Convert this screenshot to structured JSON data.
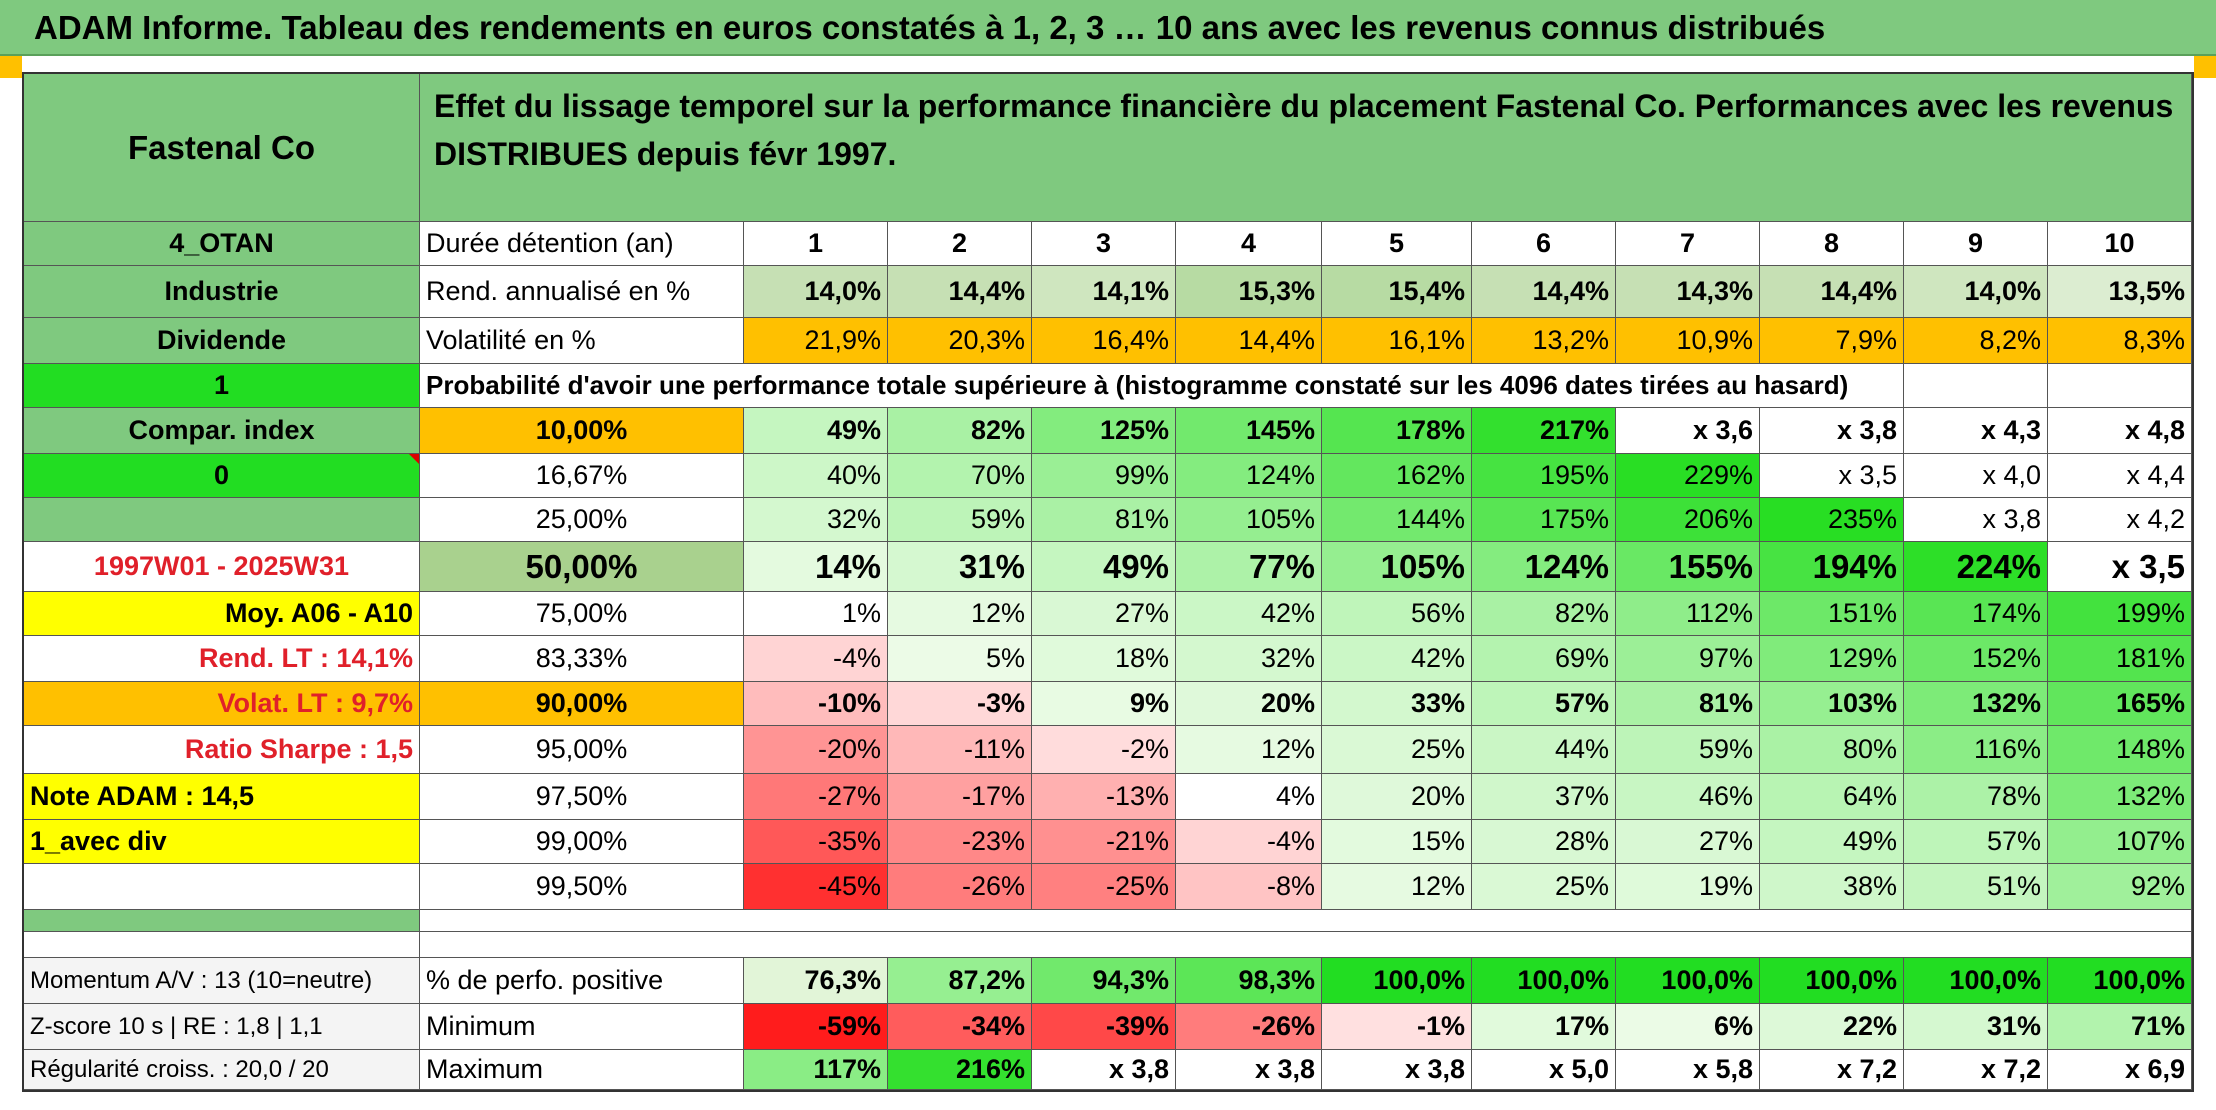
{
  "title": "ADAM Informe. Tableau des rendements en euros constatés à 1, 2, 3 … 10 ans avec les revenus connus distribués",
  "header": {
    "name": "Fastenal Co",
    "description": "Effet du lissage temporel sur la performance financière du placement Fastenal Co. Performances avec les revenus DISTRIBUES depuis févr 1997."
  },
  "left": {
    "code": "4_OTAN",
    "sector": "Industrie",
    "dividend": "Dividende",
    "flag1": "1",
    "compar_index": "Compar. index",
    "flag0": "0",
    "period": "1997W01 - 2025W31",
    "moy": "Moy. A06 - A10",
    "rend_lt": "Rend. LT :    14,1%",
    "volat_lt": "Volat. LT :   9,7%",
    "sharpe": "Ratio Sharpe :    1,5",
    "note": "Note ADAM : 14,5",
    "avec_div": "1_avec div",
    "momentum": "Momentum A/V : 13 (10=neutre)",
    "zscore": "Z-score 10 s | RE : 1,8 | 1,1",
    "regularite": "Régularité croiss. : 20,0 / 20"
  },
  "rows": {
    "duree": {
      "label": "Durée détention (an)",
      "values": [
        "1",
        "2",
        "3",
        "4",
        "5",
        "6",
        "7",
        "8",
        "9",
        "10"
      ]
    },
    "rend": {
      "label": "Rend. annualisé en %",
      "values": [
        "14,0%",
        "14,4%",
        "14,1%",
        "15,3%",
        "15,4%",
        "14,4%",
        "14,3%",
        "14,4%",
        "14,0%",
        "13,5%"
      ]
    },
    "volat": {
      "label": "Volatilité en %",
      "values": [
        "21,9%",
        "20,3%",
        "16,4%",
        "14,4%",
        "16,1%",
        "13,2%",
        "10,9%",
        "7,9%",
        "8,2%",
        "8,3%"
      ]
    },
    "proba_text": "Probabilité d'avoir une performance totale supérieure à (histogramme constaté sur les 4096 dates tirées au hasard)"
  },
  "quantiles": [
    {
      "label": "10,00%",
      "values": [
        "49%",
        "82%",
        "125%",
        "145%",
        "178%",
        "217%",
        "x 3,6",
        "x 3,8",
        "x 4,3",
        "x 4,8"
      ]
    },
    {
      "label": "16,67%",
      "values": [
        "40%",
        "70%",
        "99%",
        "124%",
        "162%",
        "195%",
        "229%",
        "x 3,5",
        "x 4,0",
        "x 4,4"
      ]
    },
    {
      "label": "25,00%",
      "values": [
        "32%",
        "59%",
        "81%",
        "105%",
        "144%",
        "175%",
        "206%",
        "235%",
        "x 3,8",
        "x 4,2"
      ]
    },
    {
      "label": "50,00%",
      "values": [
        "14%",
        "31%",
        "49%",
        "77%",
        "105%",
        "124%",
        "155%",
        "194%",
        "224%",
        "x 3,5"
      ]
    },
    {
      "label": "75,00%",
      "values": [
        "1%",
        "12%",
        "27%",
        "42%",
        "56%",
        "82%",
        "112%",
        "151%",
        "174%",
        "199%"
      ]
    },
    {
      "label": "83,33%",
      "values": [
        "-4%",
        "5%",
        "18%",
        "32%",
        "42%",
        "69%",
        "97%",
        "129%",
        "152%",
        "181%"
      ]
    },
    {
      "label": "90,00%",
      "values": [
        "-10%",
        "-3%",
        "9%",
        "20%",
        "33%",
        "57%",
        "81%",
        "103%",
        "132%",
        "165%"
      ]
    },
    {
      "label": "95,00%",
      "values": [
        "-20%",
        "-11%",
        "-2%",
        "12%",
        "25%",
        "44%",
        "59%",
        "80%",
        "116%",
        "148%"
      ]
    },
    {
      "label": "97,50%",
      "values": [
        "-27%",
        "-17%",
        "-13%",
        "4%",
        "20%",
        "37%",
        "46%",
        "64%",
        "78%",
        "132%"
      ]
    },
    {
      "label": "99,00%",
      "values": [
        "-35%",
        "-23%",
        "-21%",
        "-4%",
        "15%",
        "28%",
        "27%",
        "49%",
        "57%",
        "107%"
      ]
    },
    {
      "label": "99,50%",
      "values": [
        "-45%",
        "-26%",
        "-25%",
        "-8%",
        "12%",
        "25%",
        "19%",
        "38%",
        "51%",
        "92%"
      ]
    }
  ],
  "summary": [
    {
      "label": "% de perfo. positive",
      "values": [
        "76,3%",
        "87,2%",
        "94,3%",
        "98,3%",
        "100,0%",
        "100,0%",
        "100,0%",
        "100,0%",
        "100,0%",
        "100,0%"
      ]
    },
    {
      "label": "Minimum",
      "values": [
        "-59%",
        "-34%",
        "-39%",
        "-26%",
        "-1%",
        "17%",
        "6%",
        "22%",
        "31%",
        "71%"
      ]
    },
    {
      "label": "Maximum",
      "values": [
        "117%",
        "216%",
        "x 3,8",
        "x 3,8",
        "x 3,8",
        "x 5,0",
        "x 5,8",
        "x 7,2",
        "x 7,2",
        "x 6,9"
      ]
    }
  ],
  "colors": {
    "header_green": "#7fc97f",
    "bright_green": "#22dd22",
    "orange": "#ffc000",
    "yellow": "#ffff00",
    "pale_green": "#c6e0b4",
    "red": "#e0202a"
  }
}
